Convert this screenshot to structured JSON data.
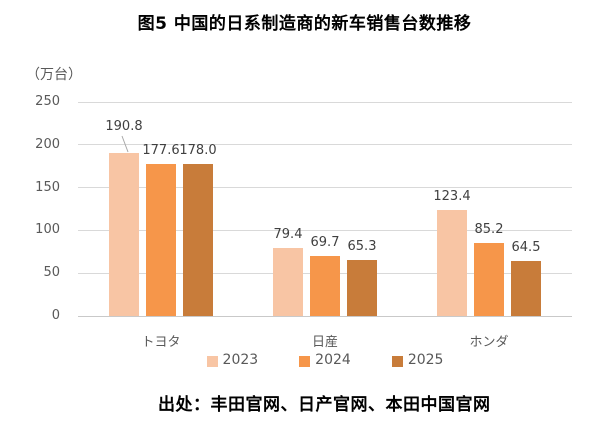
{
  "chart_data": {
    "type": "bar",
    "title": "图5 中国的日系制造商的新车销售台数推移",
    "unit_label": "（万台）",
    "categories": [
      "トヨタ",
      "日産",
      "ホンダ"
    ],
    "series": [
      {
        "name": "2023",
        "color": "#F8C5A4",
        "values": [
          190.8,
          79.4,
          123.4
        ]
      },
      {
        "name": "2024",
        "color": "#F6964A",
        "values": [
          177.6,
          69.7,
          85.2
        ]
      },
      {
        "name": "2025",
        "color": "#C87C3A",
        "values": [
          178.0,
          65.3,
          64.5
        ]
      }
    ],
    "ylim": [
      0,
      250
    ],
    "yticks": [
      0,
      50,
      100,
      150,
      200,
      250
    ],
    "grid": true,
    "legend_position": "bottom",
    "value_labels": true,
    "value_label_decimals": 1,
    "source": "出处：丰田官网、日产官网、本田中国官网",
    "colors": {
      "gridline": "#D9D9D9",
      "axis_line": "#C9C9C9",
      "axis_text": "#595959",
      "value_label_text": "#404040",
      "title_text": "#000000",
      "leader_line": "#A6A6A6"
    }
  }
}
